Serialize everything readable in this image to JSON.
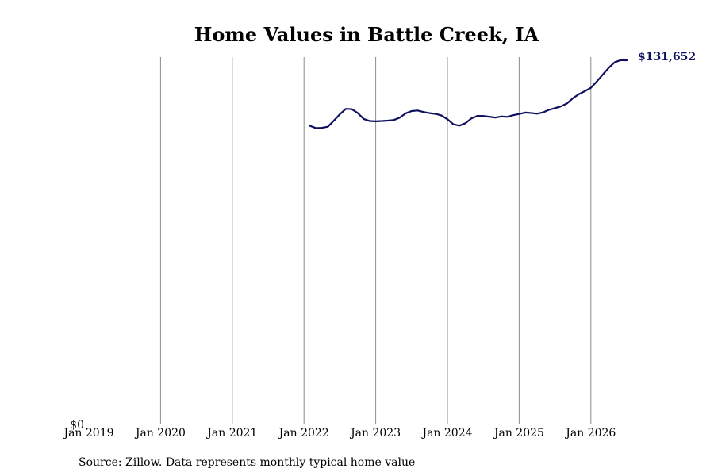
{
  "chart_data": {
    "type": "line",
    "title": "Home Values in Battle Creek, IA",
    "xlabel": "",
    "ylabel": "",
    "x_ticks": [
      "Jan 2019",
      "Jan 2020",
      "Jan 2021",
      "Jan 2022",
      "Jan 2023",
      "Jan 2024",
      "Jan 2025",
      "Jan 2026"
    ],
    "y_tick_label": "$0",
    "ylim": [
      0,
      131652
    ],
    "xlim": [
      "2019-01",
      "2026-07"
    ],
    "grid": "vertical",
    "line_color": "#0f0f5f",
    "end_label": "$131,652",
    "series": [
      {
        "x": [
          "2022-02",
          "2022-03",
          "2022-04",
          "2022-05",
          "2022-06",
          "2022-07",
          "2022-08",
          "2022-09",
          "2022-10",
          "2022-11",
          "2022-12",
          "2023-01",
          "2023-02",
          "2023-03",
          "2023-04",
          "2023-05",
          "2023-06",
          "2023-07",
          "2023-08",
          "2023-09",
          "2023-10",
          "2023-11",
          "2023-12",
          "2024-01",
          "2024-02",
          "2024-03",
          "2024-04",
          "2024-05",
          "2024-06",
          "2024-07",
          "2024-08",
          "2024-09",
          "2024-10",
          "2024-11",
          "2024-12",
          "2025-01",
          "2025-02",
          "2025-03",
          "2025-04",
          "2025-05",
          "2025-06",
          "2025-07",
          "2025-08",
          "2025-09",
          "2025-10",
          "2025-11",
          "2025-12",
          "2026-01",
          "2026-02",
          "2026-03",
          "2026-04",
          "2026-05",
          "2026-06",
          "2026-07"
        ],
        "values": [
          107950,
          107150,
          107250,
          107650,
          109850,
          112150,
          114100,
          114000,
          112550,
          110450,
          109700,
          109600,
          109700,
          109850,
          110050,
          110900,
          112450,
          113300,
          113500,
          112950,
          112550,
          112300,
          111700,
          110350,
          108500,
          108050,
          108900,
          110650,
          111550,
          111500,
          111250,
          110950,
          111350,
          111200,
          111800,
          112250,
          112750,
          112600,
          112350,
          112800,
          113750,
          114350,
          115000,
          116050,
          117950,
          119400,
          120500,
          121700,
          124000,
          126500,
          128950,
          130950,
          131700,
          131652
        ]
      }
    ]
  },
  "footer": {
    "source": "Source: Zillow. Data represents monthly typical home value"
  }
}
